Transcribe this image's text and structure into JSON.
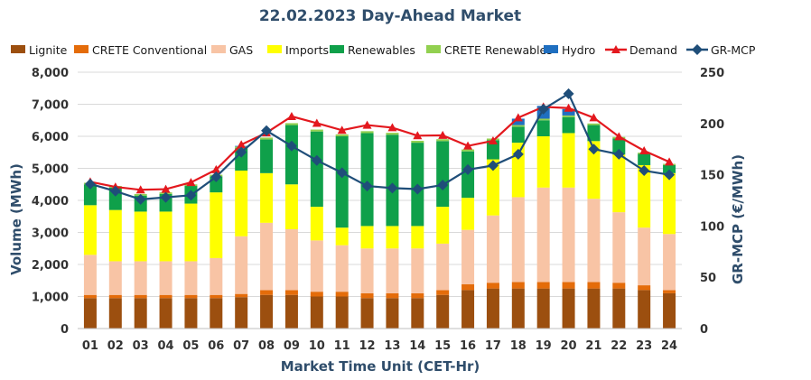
{
  "chart_data": {
    "type": "bar",
    "subtype": "stacked-bar-with-lines",
    "title": "22.02.2023  Day-Ahead Market",
    "xlabel": "Market Time Unit (CET-Hr)",
    "ylabel": "Volume (MWh)",
    "y2label": "GR-MCP (€/MWh)",
    "ylim": [
      0,
      8000
    ],
    "y2lim": [
      0,
      250
    ],
    "yticks": [
      "0",
      "1,000",
      "2,000",
      "3,000",
      "4,000",
      "5,000",
      "6,000",
      "7,000",
      "8,000"
    ],
    "y2ticks": [
      "0",
      "50",
      "100",
      "150",
      "200",
      "250"
    ],
    "grid": true,
    "legend_position": "top",
    "categories": [
      "01",
      "02",
      "03",
      "04",
      "05",
      "06",
      "07",
      "08",
      "09",
      "10",
      "11",
      "12",
      "13",
      "14",
      "15",
      "16",
      "17",
      "18",
      "19",
      "20",
      "21",
      "22",
      "23",
      "24"
    ],
    "series": [
      {
        "name": "Lignite",
        "kind": "bar",
        "color": "#9C4F0F",
        "values": [
          950,
          950,
          950,
          950,
          950,
          950,
          980,
          1050,
          1050,
          1000,
          1000,
          950,
          950,
          950,
          1050,
          1200,
          1250,
          1250,
          1250,
          1250,
          1250,
          1250,
          1200,
          1100
        ]
      },
      {
        "name": "CRETE Conventional",
        "kind": "bar",
        "color": "#E46C0A",
        "values": [
          100,
          100,
          100,
          100,
          100,
          100,
          100,
          150,
          150,
          150,
          150,
          150,
          150,
          150,
          150,
          180,
          180,
          200,
          200,
          200,
          200,
          180,
          150,
          100
        ]
      },
      {
        "name": "GAS",
        "kind": "bar",
        "color": "#F8C4A5",
        "values": [
          1250,
          1050,
          1050,
          1050,
          1050,
          1150,
          1800,
          2100,
          1900,
          1600,
          1450,
          1400,
          1400,
          1400,
          1450,
          1700,
          2100,
          2650,
          2950,
          2950,
          2600,
          2200,
          1800,
          1750
        ]
      },
      {
        "name": "Imports",
        "kind": "bar",
        "color": "#FFFF00",
        "values": [
          1550,
          1600,
          1550,
          1550,
          1800,
          2050,
          2050,
          1550,
          1400,
          1050,
          550,
          700,
          700,
          700,
          1150,
          1000,
          1750,
          1700,
          1600,
          1700,
          1800,
          1800,
          1950,
          1900
        ]
      },
      {
        "name": "Renewables",
        "kind": "bar",
        "color": "#0FA04A",
        "values": [
          650,
          700,
          500,
          550,
          550,
          500,
          700,
          1050,
          1850,
          2350,
          2850,
          2900,
          2850,
          2600,
          2050,
          1450,
          600,
          500,
          500,
          500,
          500,
          500,
          350,
          250
        ]
      },
      {
        "name": "CRETE Renewables",
        "kind": "bar",
        "color": "#92D050",
        "values": [
          50,
          50,
          50,
          50,
          50,
          50,
          50,
          60,
          60,
          60,
          60,
          60,
          60,
          60,
          60,
          60,
          50,
          50,
          50,
          50,
          50,
          50,
          40,
          40
        ]
      },
      {
        "name": "Hydro",
        "kind": "bar",
        "color": "#1F6FC0",
        "values": [
          0,
          0,
          0,
          0,
          0,
          0,
          20,
          0,
          0,
          0,
          0,
          0,
          0,
          0,
          0,
          0,
          0,
          200,
          400,
          200,
          0,
          0,
          0,
          0
        ]
      },
      {
        "name": "Demand",
        "kind": "line",
        "axis": "left",
        "color": "#E3181E",
        "marker": "triangle",
        "values": [
          4580,
          4420,
          4330,
          4350,
          4560,
          4960,
          5740,
          6110,
          6620,
          6410,
          6190,
          6350,
          6270,
          6020,
          6030,
          5700,
          5860,
          6580,
          6920,
          6880,
          6580,
          5990,
          5550,
          5200
        ]
      },
      {
        "name": "GR-MCP",
        "kind": "line",
        "axis": "right",
        "color": "#1F4E79",
        "marker": "diamond",
        "values": [
          141,
          134,
          126,
          128,
          130,
          148,
          172,
          193,
          178,
          164,
          152,
          139,
          137,
          136,
          140,
          155,
          159,
          170,
          214,
          229,
          175,
          170,
          154,
          150
        ]
      }
    ]
  }
}
